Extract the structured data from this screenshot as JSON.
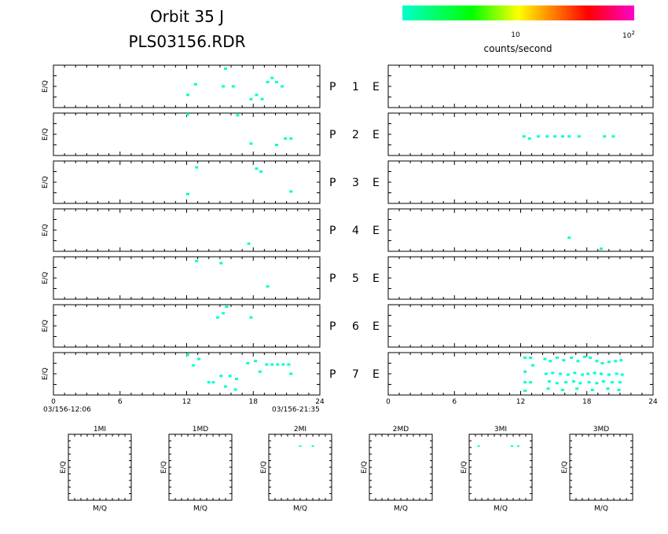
{
  "title": {
    "line1": "Orbit 35 J",
    "line2": "PLS03156.RDR"
  },
  "colorbar": {
    "label": "counts/second",
    "tick_10": "10",
    "tick_100_base": "10",
    "tick_100_exp": "2",
    "scale": "log",
    "colors": [
      "#00ffcc",
      "#00ff00",
      "#ffff00",
      "#ff8000",
      "#ff0000",
      "#ff00cc"
    ]
  },
  "axis_common": {
    "ylabel": "E/Q",
    "x_ticks": [
      "0",
      "6",
      "12",
      "18",
      "24"
    ],
    "start_time": "03/156-12:06",
    "end_time": "03/156-21:35"
  },
  "panel_labels": [
    {
      "p": "P",
      "n": "1",
      "e": "E"
    },
    {
      "p": "P",
      "n": "2",
      "e": "E"
    },
    {
      "p": "P",
      "n": "3",
      "e": "E"
    },
    {
      "p": "P",
      "n": "4",
      "e": "E"
    },
    {
      "p": "P",
      "n": "5",
      "e": "E"
    },
    {
      "p": "P",
      "n": "6",
      "e": "E"
    },
    {
      "p": "P",
      "n": "7",
      "e": "E"
    }
  ],
  "bottom_panels": [
    {
      "title": "1MI",
      "xlabel": "M/Q",
      "ylabel": "E/Q"
    },
    {
      "title": "1MD",
      "xlabel": "M/Q",
      "ylabel": "E/Q"
    },
    {
      "title": "2MI",
      "xlabel": "M/Q",
      "ylabel": "E/Q"
    },
    {
      "title": "2MD",
      "xlabel": "M/Q",
      "ylabel": "E/Q"
    },
    {
      "title": "3MI",
      "xlabel": "M/Q",
      "ylabel": "E/Q"
    },
    {
      "title": "3MD",
      "xlabel": "M/Q",
      "ylabel": "E/Q"
    }
  ],
  "chart_data": {
    "type": "heatmap",
    "x_range": [
      0,
      24
    ],
    "y_range": [
      0,
      1
    ],
    "color": "#00ffcc",
    "left_panels": [
      [
        [
          12.1,
          0.3
        ],
        [
          12.8,
          0.55
        ],
        [
          15.3,
          0.5
        ],
        [
          15.5,
          0.92
        ],
        [
          16.2,
          0.5
        ],
        [
          17.8,
          0.2
        ],
        [
          18.3,
          0.3
        ],
        [
          18.8,
          0.2
        ],
        [
          19.3,
          0.6
        ],
        [
          19.7,
          0.7
        ],
        [
          20.1,
          0.6
        ],
        [
          20.6,
          0.5
        ]
      ],
      [
        [
          12.1,
          0.97
        ],
        [
          16.6,
          0.95
        ],
        [
          17.8,
          0.28
        ],
        [
          20.1,
          0.25
        ],
        [
          20.9,
          0.4
        ],
        [
          21.4,
          0.4
        ]
      ],
      [
        [
          12.1,
          0.22
        ],
        [
          12.9,
          0.85
        ],
        [
          18.3,
          0.82
        ],
        [
          18.7,
          0.75
        ],
        [
          21.4,
          0.28
        ]
      ],
      [
        [
          17.6,
          0.18
        ]
      ],
      [
        [
          12.9,
          0.9
        ],
        [
          15.1,
          0.85
        ],
        [
          19.3,
          0.3
        ]
      ],
      [
        [
          14.8,
          0.7
        ],
        [
          15.3,
          0.8
        ],
        [
          15.6,
          0.95
        ],
        [
          17.8,
          0.7
        ]
      ],
      [
        [
          12.1,
          0.95
        ],
        [
          12.6,
          0.7
        ],
        [
          13.1,
          0.85
        ],
        [
          14.0,
          0.3
        ],
        [
          14.4,
          0.3
        ],
        [
          15.1,
          0.45
        ],
        [
          15.5,
          0.2
        ],
        [
          15.9,
          0.45
        ],
        [
          16.4,
          0.13
        ],
        [
          16.5,
          0.38
        ],
        [
          17.5,
          0.75
        ],
        [
          18.6,
          0.55
        ],
        [
          19.2,
          0.72
        ],
        [
          19.7,
          0.72
        ],
        [
          20.2,
          0.72
        ],
        [
          20.7,
          0.72
        ],
        [
          21.2,
          0.72
        ],
        [
          18.2,
          0.8
        ],
        [
          21.4,
          0.5
        ]
      ]
    ],
    "right_panels": [
      [],
      [
        [
          12.3,
          0.45
        ],
        [
          12.8,
          0.4
        ],
        [
          13.6,
          0.45
        ],
        [
          14.4,
          0.45
        ],
        [
          15.1,
          0.45
        ],
        [
          15.8,
          0.45
        ],
        [
          16.4,
          0.45
        ],
        [
          17.3,
          0.45
        ],
        [
          19.6,
          0.45
        ],
        [
          20.4,
          0.45
        ]
      ],
      [],
      [
        [
          16.4,
          0.32
        ],
        [
          19.3,
          0.06
        ]
      ],
      [],
      [],
      [
        [
          12.4,
          0.88
        ],
        [
          12.9,
          0.88
        ],
        [
          13.1,
          0.7
        ],
        [
          12.4,
          0.55
        ],
        [
          12.9,
          0.3
        ],
        [
          12.4,
          0.1
        ],
        [
          14.2,
          0.85
        ],
        [
          14.7,
          0.8
        ],
        [
          15.3,
          0.88
        ],
        [
          15.9,
          0.82
        ],
        [
          16.6,
          0.88
        ],
        [
          17.2,
          0.8
        ],
        [
          17.8,
          0.9
        ],
        [
          18.3,
          0.88
        ],
        [
          18.9,
          0.8
        ],
        [
          19.4,
          0.75
        ],
        [
          20.0,
          0.78
        ],
        [
          20.6,
          0.8
        ],
        [
          21.1,
          0.82
        ],
        [
          14.3,
          0.5
        ],
        [
          14.9,
          0.52
        ],
        [
          15.6,
          0.5
        ],
        [
          16.3,
          0.48
        ],
        [
          16.9,
          0.52
        ],
        [
          17.6,
          0.48
        ],
        [
          18.1,
          0.5
        ],
        [
          18.7,
          0.52
        ],
        [
          19.3,
          0.5
        ],
        [
          20.0,
          0.48
        ],
        [
          20.7,
          0.5
        ],
        [
          21.2,
          0.48
        ],
        [
          12.4,
          0.3
        ],
        [
          14.6,
          0.32
        ],
        [
          15.3,
          0.28
        ],
        [
          16.1,
          0.3
        ],
        [
          16.8,
          0.32
        ],
        [
          17.4,
          0.28
        ],
        [
          18.2,
          0.3
        ],
        [
          18.9,
          0.28
        ],
        [
          19.5,
          0.32
        ],
        [
          20.3,
          0.3
        ],
        [
          21.0,
          0.3
        ],
        [
          14.5,
          0.15
        ],
        [
          15.8,
          0.12
        ],
        [
          17.1,
          0.15
        ],
        [
          18.5,
          0.12
        ],
        [
          19.9,
          0.15
        ],
        [
          20.9,
          0.12
        ]
      ]
    ],
    "bottom_panels_points": [
      [],
      [],
      [
        [
          0.5,
          0.82
        ],
        [
          0.7,
          0.82
        ]
      ],
      [],
      [
        [
          0.15,
          0.82
        ],
        [
          0.68,
          0.82
        ],
        [
          0.78,
          0.82
        ]
      ],
      []
    ]
  }
}
